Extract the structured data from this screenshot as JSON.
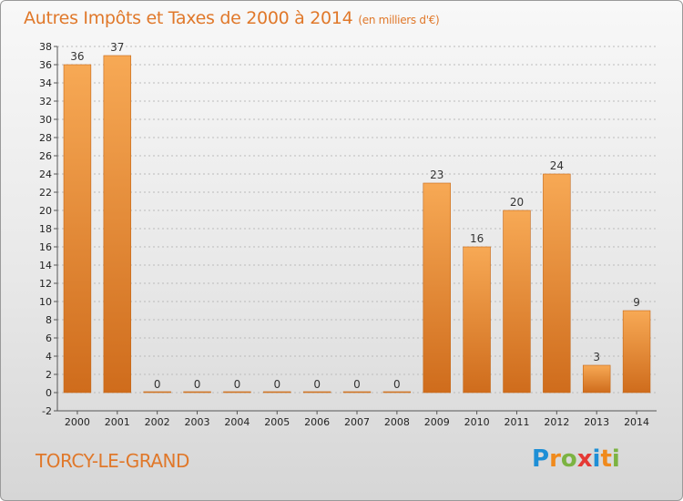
{
  "header": {
    "title": "Autres Impôts et Taxes de 2000 à 2014",
    "unit": "(en milliers d'€)"
  },
  "footer": {
    "commune": "TORCY-LE-GRAND",
    "logo": [
      "P",
      "r",
      "o",
      "x",
      "i",
      "t",
      "i"
    ],
    "logo_colors": [
      "#1e8fd6",
      "#f08a1c",
      "#7cb342",
      "#e53935",
      "#1e8fd6",
      "#f08a1c",
      "#7cb342"
    ]
  },
  "colors": {
    "bar_light": "#f7a955",
    "bar_dark": "#cf6c1c",
    "title": "#e0782a",
    "grid": "#bbbbbb"
  },
  "chart_data": {
    "type": "bar",
    "title": "Autres Impôts et Taxes de 2000 à 2014",
    "subtitle": "(en milliers d'€)",
    "xlabel": "",
    "ylabel": "",
    "categories": [
      "2000",
      "2001",
      "2002",
      "2003",
      "2004",
      "2005",
      "2006",
      "2007",
      "2008",
      "2009",
      "2010",
      "2011",
      "2012",
      "2013",
      "2014"
    ],
    "values": [
      36,
      37,
      0,
      0,
      0,
      0,
      0,
      0,
      0,
      23,
      16,
      20,
      24,
      3,
      9
    ],
    "ylim": [
      -2,
      38
    ],
    "yticks": [
      -2,
      0,
      2,
      4,
      6,
      8,
      10,
      12,
      14,
      16,
      18,
      20,
      22,
      24,
      26,
      28,
      30,
      32,
      34,
      36,
      38
    ],
    "grid": true,
    "legend": "none"
  }
}
